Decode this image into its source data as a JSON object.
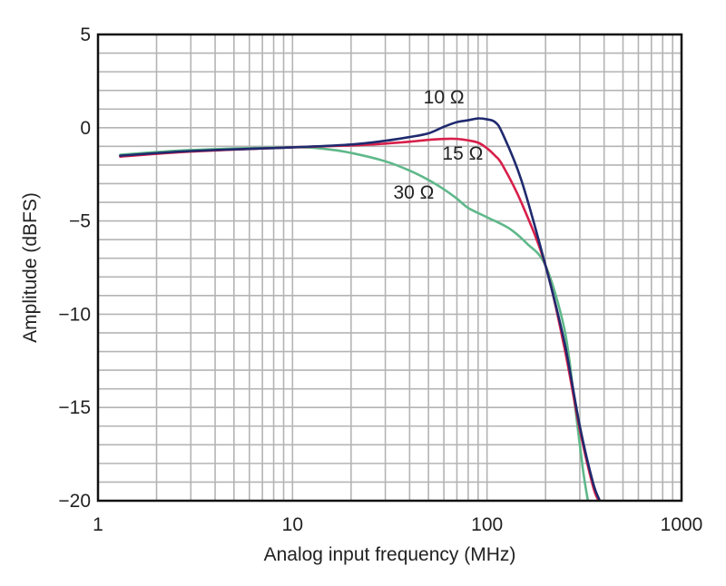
{
  "chart_data": {
    "type": "line",
    "title": "",
    "xlabel": "Analog input frequency (MHz)",
    "ylabel": "Amplitude (dBFS)",
    "xscale": "log",
    "xlim": [
      1,
      1000
    ],
    "ylim": [
      -20,
      5
    ],
    "grid": true,
    "legend": "inline labels near curves",
    "x_ticks": [
      {
        "value": 1,
        "label": "1"
      },
      {
        "value": 10,
        "label": "10"
      },
      {
        "value": 100,
        "label": "100"
      },
      {
        "value": 1000,
        "label": "1000"
      }
    ],
    "y_ticks": [
      {
        "value": 5,
        "label": "5"
      },
      {
        "value": 0,
        "label": "0"
      },
      {
        "value": -5,
        "label": "−5"
      },
      {
        "value": -10,
        "label": "−10"
      },
      {
        "value": -15,
        "label": "−15"
      },
      {
        "value": -20,
        "label": "−20"
      }
    ],
    "series": [
      {
        "name": "10 Ω",
        "color": "#1f2a6e",
        "label_at": [
          60,
          1.3
        ],
        "x": [
          1.3,
          3,
          10,
          20,
          30,
          40,
          50,
          60,
          70,
          80,
          90,
          100,
          110,
          120,
          150,
          200,
          250,
          300,
          350,
          380
        ],
        "y": [
          -1.5,
          -1.25,
          -1.05,
          -0.9,
          -0.7,
          -0.5,
          -0.3,
          0.05,
          0.3,
          0.4,
          0.5,
          0.45,
          0.3,
          -0.3,
          -2.8,
          -7.4,
          -11.5,
          -16.0,
          -19.0,
          -20.0
        ]
      },
      {
        "name": "15 Ω",
        "color": "#d81f4a",
        "label_at": [
          75,
          -1.7
        ],
        "x": [
          1.3,
          3,
          10,
          20,
          30,
          40,
          50,
          60,
          70,
          80,
          90,
          100,
          110,
          120,
          150,
          200,
          250,
          300,
          350,
          375
        ],
        "y": [
          -1.55,
          -1.28,
          -1.05,
          -0.95,
          -0.85,
          -0.75,
          -0.65,
          -0.6,
          -0.6,
          -0.68,
          -0.8,
          -1.1,
          -1.5,
          -2.0,
          -4.0,
          -7.4,
          -11.8,
          -16.2,
          -19.2,
          -20.0
        ]
      },
      {
        "name": "30 Ω",
        "color": "#5fb88a",
        "label_at": [
          42,
          -3.8
        ],
        "x": [
          1.3,
          3,
          10,
          15,
          20,
          30,
          40,
          50,
          60,
          70,
          80,
          100,
          130,
          160,
          200,
          250,
          280,
          310,
          330
        ],
        "y": [
          -1.45,
          -1.2,
          -1.05,
          -1.15,
          -1.35,
          -1.8,
          -2.3,
          -2.8,
          -3.3,
          -3.8,
          -4.3,
          -4.8,
          -5.4,
          -6.2,
          -7.4,
          -10.8,
          -14.5,
          -18.2,
          -20.0
        ]
      }
    ]
  }
}
